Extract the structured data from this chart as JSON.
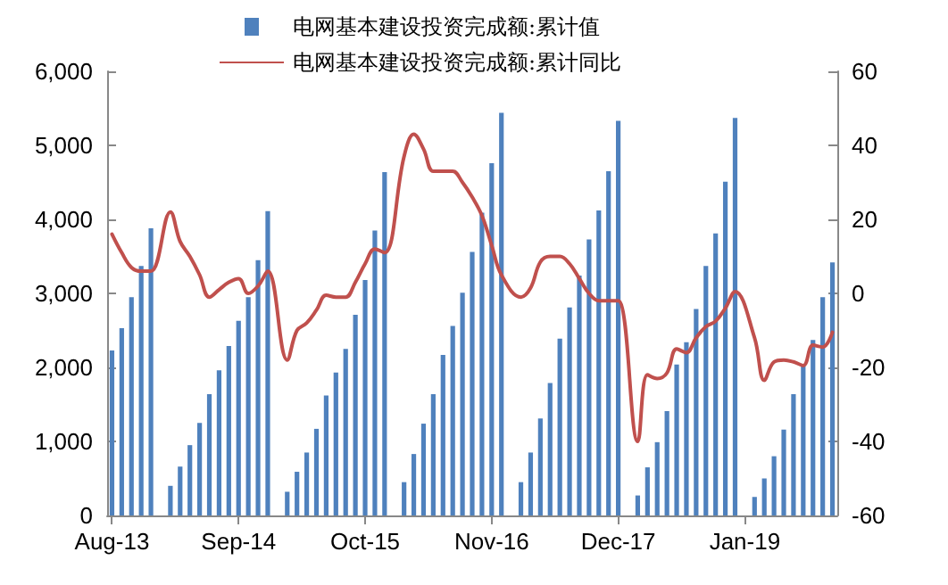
{
  "chart_data": {
    "type": "bar",
    "categories": [
      "Aug-13",
      null,
      null,
      null,
      null,
      null,
      null,
      null,
      null,
      null,
      null,
      null,
      null,
      "Sep-14",
      null,
      null,
      null,
      null,
      null,
      null,
      null,
      null,
      null,
      null,
      null,
      null,
      "Oct-15",
      null,
      null,
      null,
      null,
      null,
      null,
      null,
      null,
      null,
      null,
      null,
      null,
      "Nov-16",
      null,
      null,
      null,
      null,
      null,
      null,
      null,
      null,
      null,
      null,
      null,
      null,
      "Dec-17",
      null,
      null,
      null,
      null,
      null,
      null,
      null,
      null,
      null,
      null,
      null,
      null,
      "Jan-19",
      null,
      null,
      null,
      null,
      null,
      null,
      null,
      null,
      null
    ],
    "series": [
      {
        "name": "电网基本建设投资完成额:累计值",
        "color": "#4f81bd",
        "values": [
          2230,
          2530,
          2950,
          3370,
          3880,
          null,
          400,
          660,
          950,
          1250,
          1640,
          1960,
          2290,
          2630,
          2950,
          3450,
          4110,
          null,
          320,
          590,
          850,
          1170,
          1620,
          1930,
          2250,
          2710,
          3180,
          3850,
          4640,
          null,
          450,
          830,
          1240,
          1640,
          2170,
          2560,
          3010,
          3560,
          4090,
          4760,
          5440,
          null,
          450,
          850,
          1310,
          1790,
          2390,
          2810,
          3240,
          3730,
          4120,
          4650,
          5330,
          null,
          270,
          650,
          990,
          1410,
          2040,
          2340,
          2790,
          3370,
          3810,
          4510,
          5370,
          null,
          250,
          500,
          800,
          1160,
          1640,
          2020,
          2370,
          2950,
          3420
        ]
      },
      {
        "name": "电网基本建设投资完成额:累计同比",
        "type": "line",
        "axis": "y2",
        "color": "#c0504d",
        "values": [
          16,
          11,
          7,
          6,
          6,
          null,
          22,
          14,
          10,
          5,
          -1,
          1,
          3,
          4,
          0,
          2,
          6,
          null,
          -18,
          -10,
          -8,
          -4.5,
          -0.5,
          -1,
          -1,
          3,
          8,
          12,
          11,
          null,
          37,
          43,
          39,
          33,
          33,
          33,
          30,
          26,
          21,
          13,
          5,
          null,
          -1,
          1.5,
          8.5,
          10,
          10,
          8,
          4,
          0,
          -2,
          -2,
          -2,
          null,
          -40,
          -22,
          -23,
          -21.5,
          -15,
          -16,
          -12,
          -9,
          -7.5,
          -4,
          0.5,
          null,
          -12,
          -23.5,
          -18.5,
          -18,
          -18.5,
          -19.5,
          -14,
          -14.5,
          -10.5
        ]
      }
    ],
    "ylim": [
      0,
      6000
    ],
    "yticks": [
      0,
      {
        "value": 1000,
        "label": "1,000"
      },
      {
        "value": 2000,
        "label": "2,000"
      },
      {
        "value": 3000,
        "label": "3,000"
      },
      {
        "value": 4000,
        "label": "4,000"
      },
      {
        "value": 5000,
        "label": "5,000"
      },
      {
        "value": 6000,
        "label": "6,000"
      }
    ],
    "y2lim": [
      -60,
      60
    ],
    "y2ticks": [
      -60,
      -40,
      -20,
      0,
      20,
      40,
      60
    ],
    "legend": "top",
    "grid": false,
    "marker": "none"
  }
}
